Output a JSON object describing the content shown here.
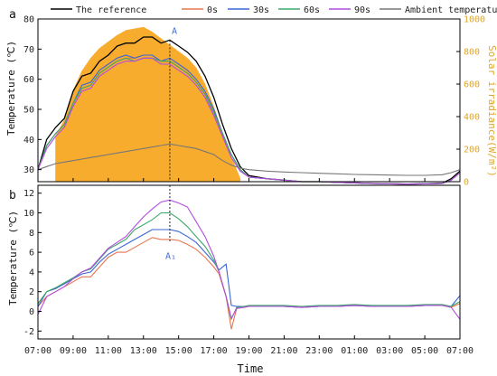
{
  "chart_data": [
    {
      "panel_label": "a",
      "type": "line",
      "ylabel": "Temperature (℃)",
      "y2label": "Solar irradiance(W/m²)",
      "ylim": [
        26,
        80
      ],
      "y2lim": [
        0,
        1000
      ],
      "yticks": [
        "30",
        "40",
        "50",
        "60",
        "70",
        "80"
      ],
      "y2ticks": [
        "0",
        "200",
        "400",
        "600",
        "800",
        "1000"
      ],
      "annotation": "A",
      "marker_time": 14.5,
      "x": [
        7,
        7.5,
        8,
        8.5,
        9,
        9.5,
        10,
        10.5,
        11,
        11.5,
        12,
        12.5,
        13,
        13.5,
        14,
        14.5,
        15,
        15.5,
        16,
        16.5,
        17,
        17.5,
        18,
        18.5,
        19,
        20,
        21,
        22,
        23,
        24,
        25,
        26,
        27,
        28,
        29,
        30,
        30.5,
        31
      ],
      "series": [
        {
          "name": "The reference",
          "color": "#000000",
          "values": [
            30,
            40,
            44,
            47,
            56,
            61,
            62,
            66,
            68,
            71,
            72,
            72,
            74,
            74,
            72,
            73,
            71,
            69,
            66,
            61,
            54,
            45,
            37,
            31,
            28,
            27,
            26.5,
            26,
            26,
            25.8,
            25.6,
            25.4,
            25.3,
            25.2,
            25.3,
            25.5,
            27,
            29.5
          ]
        },
        {
          "name": "0s",
          "color": "#e8754d",
          "values": [
            30,
            38,
            42,
            45,
            52,
            57,
            58,
            62,
            64,
            66,
            67,
            67,
            68,
            68,
            66,
            66,
            64,
            62,
            59,
            55,
            49,
            42,
            35,
            30,
            27.5,
            27,
            26.5,
            26,
            26,
            25.8,
            25.6,
            25.4,
            25.3,
            25.2,
            25.3,
            25.4,
            26.5,
            29
          ]
        },
        {
          "name": "30s",
          "color": "#3a66d6",
          "values": [
            30,
            38,
            42,
            45,
            52,
            58,
            59,
            63,
            65,
            67,
            68,
            67,
            68,
            68,
            66,
            67,
            65,
            63,
            60,
            56,
            50,
            42,
            35,
            30,
            27.5,
            27,
            26.5,
            26,
            26,
            25.8,
            25.6,
            25.4,
            25.3,
            25.2,
            25.3,
            25.4,
            26.5,
            29
          ]
        },
        {
          "name": "60s",
          "color": "#3fa86a",
          "values": [
            30,
            38,
            42,
            45,
            52,
            57,
            58,
            62,
            64,
            66,
            67,
            66,
            67,
            67,
            66,
            66,
            64,
            62,
            59,
            55,
            49,
            42,
            35,
            30,
            27.5,
            27,
            26.5,
            26,
            26,
            25.8,
            25.6,
            25.4,
            25.3,
            25.2,
            25.3,
            25.4,
            26.5,
            29
          ]
        },
        {
          "name": "90s",
          "color": "#b34be0",
          "values": [
            30,
            37,
            41,
            44,
            51,
            56,
            57,
            61,
            63,
            65,
            66,
            66,
            67,
            67,
            65,
            65,
            63,
            61,
            58,
            54,
            48,
            41,
            34,
            29.5,
            27.5,
            27,
            26.5,
            26,
            26,
            25.8,
            25.6,
            25.4,
            25.3,
            25.2,
            25.3,
            25.4,
            26.5,
            29
          ]
        },
        {
          "name": "Ambient temperature",
          "color": "#777777",
          "values": [
            30,
            31,
            32,
            32.5,
            33,
            33.5,
            34,
            34.5,
            35,
            35.5,
            36,
            36.5,
            37,
            37.5,
            38,
            38.5,
            38,
            37.5,
            37,
            36,
            35,
            33,
            31.5,
            30.5,
            30,
            29.5,
            29.2,
            29,
            28.8,
            28.6,
            28.4,
            28.3,
            28.2,
            28.1,
            28.1,
            28.3,
            29,
            30
          ]
        }
      ],
      "irradiance": {
        "color": "#f7a823",
        "x": [
          8,
          8.5,
          9,
          9.5,
          10,
          10.5,
          11,
          11.5,
          12,
          12.5,
          13,
          13.5,
          14,
          14.5,
          15,
          15.5,
          16,
          16.5,
          17,
          17.5,
          18,
          18.5
        ],
        "values": [
          280,
          380,
          560,
          680,
          760,
          820,
          860,
          900,
          930,
          940,
          950,
          920,
          880,
          840,
          800,
          760,
          700,
          600,
          460,
          300,
          150,
          20
        ]
      }
    },
    {
      "panel_label": "b",
      "type": "line",
      "ylabel": "Temperature (℃)",
      "xlabel": "Time",
      "ylim": [
        -2.8,
        12.8
      ],
      "yticks": [
        "-2",
        "0",
        "2",
        "4",
        "6",
        "8",
        "10",
        "12"
      ],
      "annotation": "A₁",
      "marker_time": 14.5,
      "xticks": [
        "07:00",
        "09:00",
        "11:00",
        "13:00",
        "15:00",
        "17:00",
        "19:00",
        "21:00",
        "23:00",
        "01:00",
        "03:00",
        "05:00",
        "07:00"
      ],
      "x": [
        7,
        7.5,
        8,
        8.5,
        9,
        9.5,
        10,
        10.5,
        11,
        11.5,
        12,
        12.5,
        13,
        13.5,
        14,
        14.5,
        15,
        15.5,
        16,
        16.5,
        17,
        17.3,
        17.7,
        18,
        18.3,
        18.7,
        19,
        20,
        21,
        22,
        23,
        24,
        25,
        26,
        27,
        28,
        29,
        30,
        30.5,
        31
      ],
      "series": [
        {
          "name": "0s",
          "color": "#e8754d",
          "values": [
            0.5,
            1.5,
            2,
            2.5,
            3,
            3.5,
            3.5,
            4.5,
            5.5,
            6,
            6,
            6.5,
            7,
            7.5,
            7.3,
            7.3,
            7.2,
            6.8,
            6.3,
            5.5,
            4.5,
            3.8,
            1.5,
            -1.8,
            0.3,
            0.4,
            0.5,
            0.5,
            0.5,
            0.4,
            0.5,
            0.5,
            0.6,
            0.5,
            0.5,
            0.5,
            0.6,
            0.6,
            0.4,
            0.8
          ]
        },
        {
          "name": "30s",
          "color": "#3a66d6",
          "values": [
            0.5,
            2,
            2.3,
            2.8,
            3.3,
            3.8,
            4,
            5,
            5.8,
            6.3,
            6.8,
            7.3,
            7.8,
            8.3,
            8.3,
            8.3,
            8.1,
            7.6,
            7,
            6,
            5,
            4.2,
            4.8,
            0.6,
            0.5,
            0.5,
            0.5,
            0.5,
            0.5,
            0.4,
            0.5,
            0.5,
            0.6,
            0.5,
            0.5,
            0.5,
            0.6,
            0.6,
            0.5,
            1.6
          ]
        },
        {
          "name": "60s",
          "color": "#3fa86a",
          "values": [
            0.8,
            2,
            2.4,
            2.9,
            3.4,
            4,
            4.3,
            5.3,
            6.3,
            6.8,
            7.3,
            8.3,
            8.8,
            9.3,
            10,
            10,
            9.4,
            8.6,
            7.6,
            6.6,
            5.2,
            4,
            1.5,
            -0.8,
            0.4,
            0.5,
            0.6,
            0.6,
            0.6,
            0.5,
            0.6,
            0.6,
            0.7,
            0.6,
            0.6,
            0.6,
            0.7,
            0.7,
            0.5,
            1
          ]
        },
        {
          "name": "90s",
          "color": "#b34be0",
          "values": [
            -0.3,
            1.5,
            2,
            2.5,
            3.3,
            4,
            4.4,
            5.4,
            6.4,
            7,
            7.6,
            8.6,
            9.6,
            10.4,
            11.1,
            11.3,
            11,
            10.6,
            9.1,
            7.6,
            5.6,
            4,
            1.5,
            -0.7,
            0.3,
            0.4,
            0.5,
            0.5,
            0.5,
            0.4,
            0.5,
            0.5,
            0.6,
            0.5,
            0.5,
            0.5,
            0.6,
            0.6,
            0.4,
            -0.8
          ]
        }
      ]
    }
  ]
}
